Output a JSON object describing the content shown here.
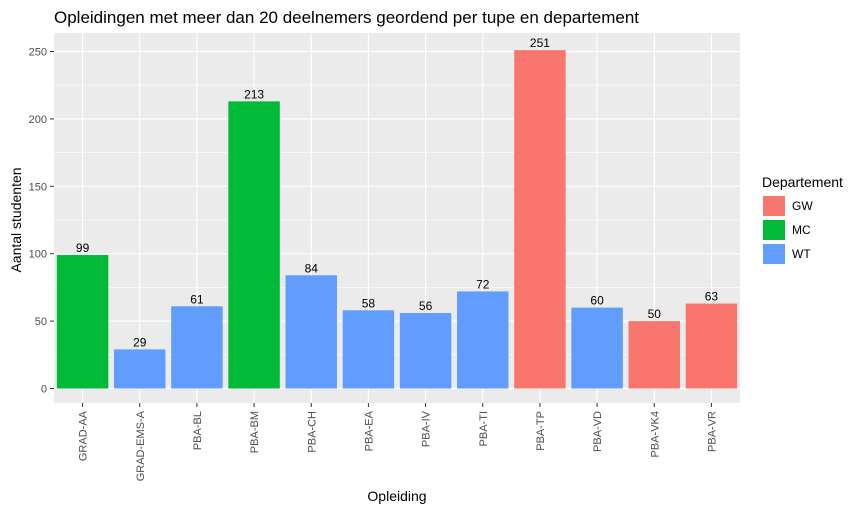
{
  "chart_data": {
    "type": "bar",
    "title": "Opleidingen met meer dan 20 deelnemers geordend per tupe en departement",
    "xlabel": "Opleiding",
    "ylabel": "Aantal studenten",
    "ylim": [
      0,
      263
    ],
    "yticks": [
      0,
      50,
      100,
      150,
      200,
      250
    ],
    "grid": true,
    "legend_position": "right",
    "categories": [
      "GRAD-AA",
      "GRAD-EMS-A",
      "PBA-BL",
      "PBA-BM",
      "PBA-CH",
      "PBA-EA",
      "PBA-IV",
      "PBA-TI",
      "PBA-TP",
      "PBA-VD",
      "PBA-VK4",
      "PBA-VR"
    ],
    "values": [
      99,
      29,
      61,
      213,
      84,
      58,
      56,
      72,
      251,
      60,
      50,
      63
    ],
    "groups": [
      "MC",
      "WT",
      "WT",
      "MC",
      "WT",
      "WT",
      "WT",
      "WT",
      "GW",
      "WT",
      "GW",
      "GW"
    ],
    "legend": {
      "title": "Departement",
      "items": [
        {
          "name": "GW",
          "color": "#F8766D"
        },
        {
          "name": "MC",
          "color": "#00BA38"
        },
        {
          "name": "WT",
          "color": "#619CFF"
        }
      ]
    },
    "panel_color": "#EBEBEB",
    "grid_color": "#FFFFFF"
  }
}
